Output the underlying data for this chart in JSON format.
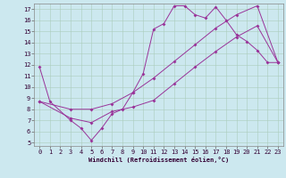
{
  "bg_color": "#cce8ef",
  "line_color": "#993399",
  "xlabel": "Windchill (Refroidissement éolien,°C)",
  "xlim": [
    -0.5,
    23.5
  ],
  "ylim": [
    4.7,
    17.5
  ],
  "xticks": [
    0,
    1,
    2,
    3,
    4,
    5,
    6,
    7,
    8,
    9,
    10,
    11,
    12,
    13,
    14,
    15,
    16,
    17,
    18,
    19,
    20,
    21,
    22,
    23
  ],
  "yticks": [
    5,
    6,
    7,
    8,
    9,
    10,
    11,
    12,
    13,
    14,
    15,
    16,
    17
  ],
  "line1_x": [
    0,
    1,
    3,
    4,
    5,
    6,
    7,
    8,
    9,
    10,
    11,
    12,
    13,
    14,
    15,
    16,
    17,
    18,
    19,
    20,
    21,
    22,
    23
  ],
  "line1_y": [
    11.8,
    8.7,
    7.0,
    6.3,
    5.2,
    6.3,
    7.6,
    8.0,
    9.5,
    11.2,
    15.2,
    15.7,
    17.3,
    17.3,
    16.5,
    16.2,
    17.2,
    16.0,
    14.7,
    14.1,
    13.3,
    12.2,
    12.2
  ],
  "line2_x": [
    0,
    3,
    5,
    7,
    9,
    11,
    13,
    15,
    17,
    19,
    21,
    23
  ],
  "line2_y": [
    8.7,
    8.0,
    8.0,
    8.5,
    9.5,
    10.8,
    12.3,
    13.8,
    15.3,
    16.5,
    17.3,
    12.2
  ],
  "line3_x": [
    0,
    3,
    5,
    7,
    9,
    11,
    13,
    15,
    17,
    19,
    21,
    23
  ],
  "line3_y": [
    8.7,
    7.2,
    6.8,
    7.8,
    8.2,
    8.8,
    10.3,
    11.8,
    13.2,
    14.5,
    15.5,
    12.2
  ]
}
